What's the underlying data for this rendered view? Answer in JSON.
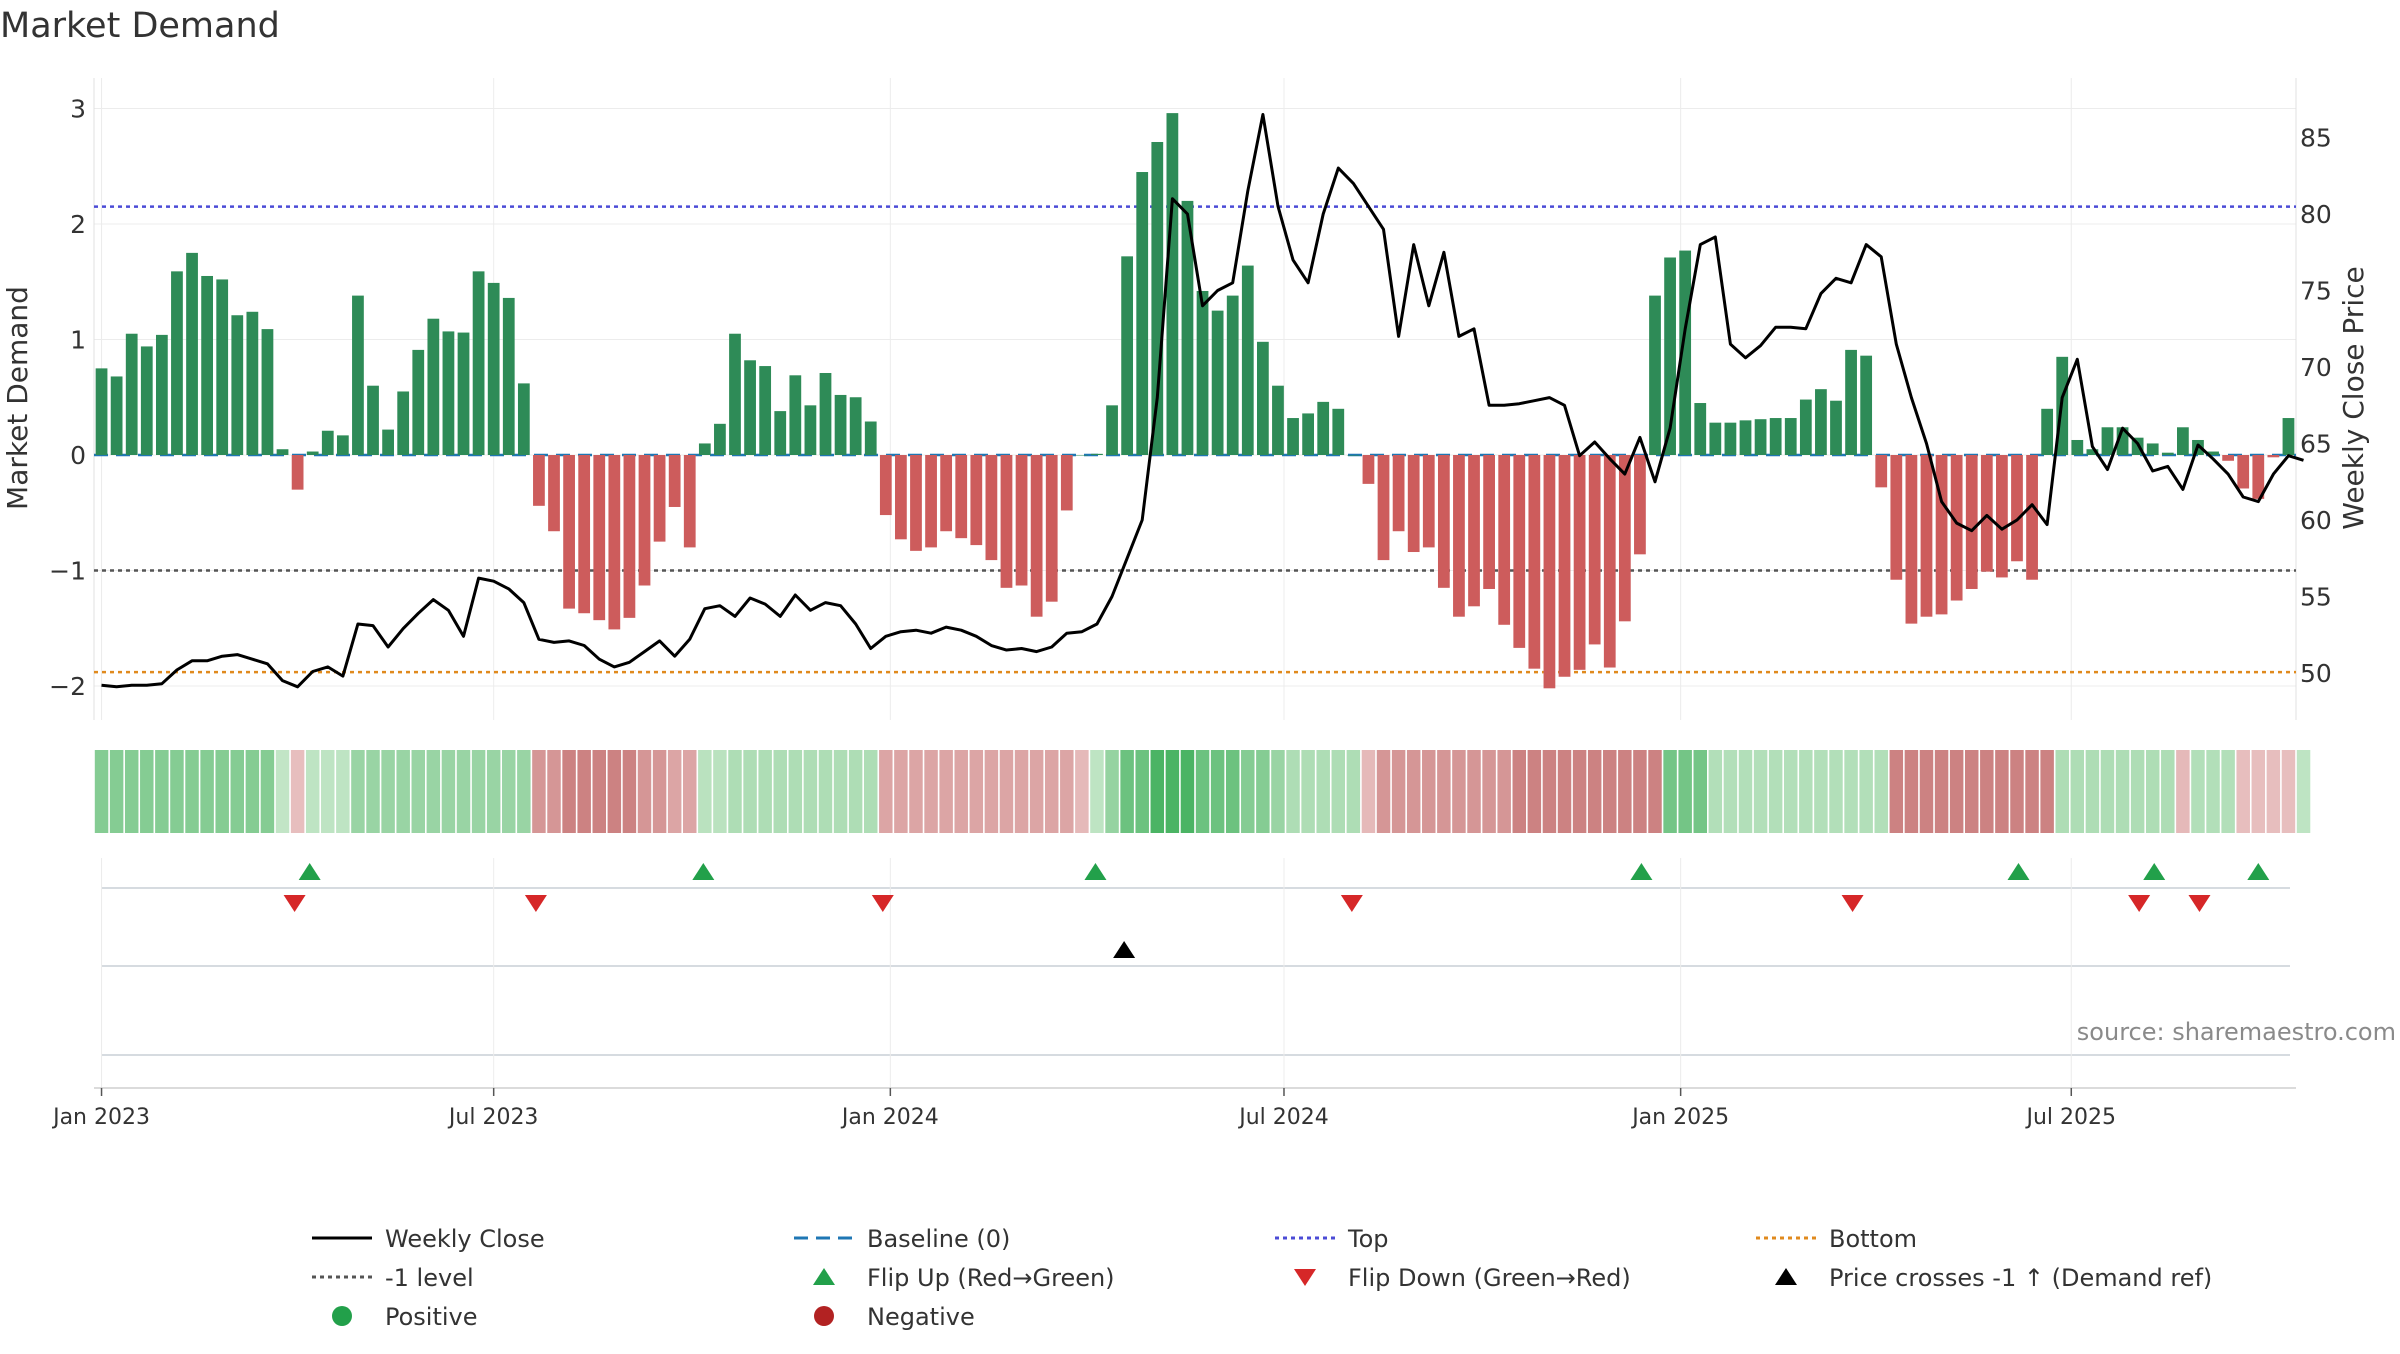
{
  "chart_data": {
    "type": "bar",
    "title": "Market Demand",
    "ylabel": "Market Demand",
    "y2label": "Weekly Close Price",
    "ylim": [
      -2.35,
      3.2
    ],
    "y2lim": [
      47.5,
      88
    ],
    "yticks": [
      "3",
      "2",
      "1",
      "0",
      "−1",
      "−2"
    ],
    "ytick_values": [
      3,
      2,
      1,
      0,
      -1,
      -2
    ],
    "y2ticks": [
      "85",
      "80",
      "75",
      "70",
      "65",
      "60",
      "55",
      "50"
    ],
    "y2tick_values": [
      85,
      80,
      75,
      70,
      65,
      60,
      55,
      50
    ],
    "x_ticks": [
      {
        "label": "Jan 2023",
        "week": 0
      },
      {
        "label": "Jul 2023",
        "week": 26
      },
      {
        "label": "Jan 2024",
        "week": 52.3
      },
      {
        "label": "Jul 2024",
        "week": 78.4
      },
      {
        "label": "Jan 2025",
        "week": 104.7
      },
      {
        "label": "Jul 2025",
        "week": 130.6
      }
    ],
    "source": "source: sharemaestro.com",
    "top_level": 2.15,
    "minus_one_level": -1,
    "bottom_level": -1.88,
    "baseline": 0,
    "demand": [
      0.75,
      0.68,
      1.05,
      0.94,
      1.04,
      1.59,
      1.75,
      1.55,
      1.52,
      1.21,
      1.24,
      1.09,
      0.05,
      -0.3,
      0.03,
      0.21,
      0.17,
      1.38,
      0.6,
      0.22,
      0.55,
      0.91,
      1.18,
      1.07,
      1.06,
      1.59,
      1.49,
      1.36,
      0.62,
      -0.44,
      -0.66,
      -1.33,
      -1.37,
      -1.43,
      -1.51,
      -1.41,
      -1.13,
      -0.75,
      -0.45,
      -0.8,
      0.1,
      0.27,
      1.05,
      0.82,
      0.77,
      0.38,
      0.69,
      0.43,
      0.71,
      0.52,
      0.5,
      0.29,
      -0.52,
      -0.73,
      -0.83,
      -0.8,
      -0.66,
      -0.72,
      -0.78,
      -0.91,
      -1.15,
      -1.13,
      -1.4,
      -1.27,
      -0.48,
      0.0,
      0.01,
      0.43,
      1.72,
      2.45,
      2.71,
      2.96,
      2.2,
      1.42,
      1.25,
      1.38,
      1.64,
      0.98,
      0.6,
      0.32,
      0.36,
      0.46,
      0.4,
      0,
      -0.25,
      -0.91,
      -0.66,
      -0.84,
      -0.8,
      -1.15,
      -1.4,
      -1.31,
      -1.16,
      -1.47,
      -1.67,
      -1.85,
      -2.02,
      -1.92,
      -1.86,
      -1.64,
      -1.84,
      -1.44,
      -0.86,
      1.38,
      1.71,
      1.77,
      0.45,
      0.28,
      0.28,
      0.3,
      0.31,
      0.32,
      0.32,
      0.48,
      0.57,
      0.47,
      0.91,
      0.86,
      -0.28,
      -1.08,
      -1.46,
      -1.4,
      -1.38,
      -1.26,
      -1.16,
      -1.01,
      -1.06,
      -0.92,
      -1.08,
      0.4,
      0.85,
      0.13,
      0.05,
      0.24,
      0.24,
      0.15,
      0.1,
      0.02,
      0.24,
      0.13,
      0.03,
      -0.05,
      -0.29,
      -0.38,
      -0.02,
      0.32
    ],
    "weekly_close": [
      49.2,
      49.1,
      49.2,
      49.2,
      49.3,
      50.2,
      50.8,
      50.8,
      51.1,
      51.2,
      50.9,
      50.6,
      49.5,
      49.1,
      50.1,
      50.4,
      49.8,
      53.2,
      53.1,
      51.7,
      52.9,
      53.9,
      54.8,
      54.1,
      52.4,
      56.2,
      56.0,
      55.5,
      54.6,
      52.2,
      52.0,
      52.1,
      51.8,
      50.9,
      50.4,
      50.7,
      51.4,
      52.1,
      51.1,
      52.2,
      54.2,
      54.4,
      53.7,
      54.9,
      54.5,
      53.7,
      55.1,
      54.1,
      54.6,
      54.4,
      53.2,
      51.6,
      52.4,
      52.7,
      52.8,
      52.6,
      53.0,
      52.8,
      52.4,
      51.8,
      51.5,
      51.6,
      51.4,
      51.7,
      52.6,
      52.7,
      53.2,
      55.0,
      57.5,
      60.0,
      68.0,
      81.0,
      80.0,
      74.0,
      75.0,
      75.5,
      81.5,
      86.5,
      80.5,
      77.0,
      75.5,
      80.0,
      83.0,
      82.0,
      80.5,
      79.0,
      72.0,
      78.0,
      74.0,
      77.5,
      72.0,
      72.5,
      67.5,
      67.5,
      67.6,
      67.8,
      68.0,
      67.5,
      64.2,
      65.1,
      64.0,
      63.0,
      65.4,
      62.5,
      66.0,
      72.5,
      78.0,
      78.5,
      71.5,
      70.6,
      71.4,
      72.6,
      72.6,
      72.5,
      74.8,
      75.8,
      75.5,
      78.0,
      77.2,
      71.5,
      68.0,
      65.0,
      61.2,
      59.8,
      59.3,
      60.3,
      59.4,
      60.0,
      61.0,
      59.7,
      68.0,
      70.5,
      64.8,
      63.3,
      66.0,
      65.0,
      63.2,
      63.5,
      62.0,
      64.9,
      64.0,
      63.0,
      61.5,
      61.2,
      63.0,
      64.2,
      63.9
    ],
    "heat_strip": [
      2,
      2,
      2,
      2,
      2,
      2,
      2,
      2,
      2,
      2,
      2,
      2,
      0.5,
      -0.5,
      0.6,
      0.6,
      0.6,
      1.5,
      1.5,
      1.5,
      1.5,
      1.5,
      1.5,
      1.5,
      1.5,
      1.5,
      1.5,
      1.5,
      1.5,
      -1.3,
      -1.3,
      -1.7,
      -1.7,
      -1.7,
      -1.7,
      -1.7,
      -1.3,
      -1.3,
      -1.0,
      -1.0,
      0.7,
      0.7,
      1.0,
      1.0,
      1.0,
      1.0,
      1.0,
      1.0,
      1.0,
      1.0,
      1.0,
      1.0,
      -1.0,
      -1.0,
      -1.0,
      -1.0,
      -1.0,
      -1.0,
      -1.0,
      -1.0,
      -1.0,
      -1.0,
      -1.0,
      -1.0,
      -1.0,
      -0.6,
      0.6,
      1.6,
      2.6,
      2.6,
      3.4,
      3.4,
      3.4,
      2.6,
      2.6,
      2.6,
      2.0,
      2.0,
      1.5,
      1.0,
      1.0,
      1.0,
      1.0,
      1.0,
      -0.6,
      -1.3,
      -1.3,
      -1.3,
      -1.3,
      -1.3,
      -1.3,
      -1.3,
      -1.3,
      -1.3,
      -1.7,
      -1.7,
      -1.7,
      -1.7,
      -1.7,
      -1.7,
      -1.7,
      -1.7,
      -1.7,
      -1.7,
      2.4,
      2.4,
      2.4,
      0.9,
      0.9,
      0.9,
      0.9,
      0.9,
      0.9,
      0.9,
      0.9,
      0.9,
      0.9,
      0.9,
      0.9,
      -1.7,
      -1.7,
      -1.7,
      -1.7,
      -1.7,
      -1.7,
      -1.7,
      -1.7,
      -1.7,
      -1.7,
      -1.7,
      1.0,
      1.0,
      1.0,
      1.0,
      1.0,
      1.0,
      1.0,
      1.0,
      -0.6,
      0.9,
      0.9,
      0.9,
      -0.5,
      -0.5,
      -0.5,
      -0.5,
      0.6
    ],
    "flip_up_weeks": [
      13.8,
      39.9,
      65.9,
      102.1,
      127.1,
      136.1,
      143
    ],
    "flip_down_weeks": [
      12.8,
      28.8,
      51.8,
      82.9,
      116.1,
      135.1,
      139.1
    ],
    "price_cross_weeks": [
      67.8
    ],
    "legend": [
      {
        "label": "Weekly Close",
        "kind": "line",
        "color": "#000000"
      },
      {
        "label": "Baseline (0)",
        "kind": "dash",
        "color": "#1f77b4"
      },
      {
        "label": "Top",
        "kind": "dot",
        "color": "#4b4bd6"
      },
      {
        "label": "Bottom",
        "kind": "dot",
        "color": "#e08a1e"
      },
      {
        "label": "-1 level",
        "kind": "dot",
        "color": "#555555"
      },
      {
        "label": "Flip Up (Red→Green)",
        "kind": "tri-up",
        "color": "#22a04a"
      },
      {
        "label": "Flip Down (Green→Red)",
        "kind": "tri-down",
        "color": "#d62728"
      },
      {
        "label": "Price crosses -1 ↑ (Demand ref)",
        "kind": "tri-up",
        "color": "#000000"
      },
      {
        "label": "Positive",
        "kind": "circle",
        "color": "#22a04a"
      },
      {
        "label": "Negative",
        "kind": "circle",
        "color": "#b22222"
      }
    ],
    "colors": {
      "positive_bar": "#2e8b57",
      "negative_bar": "#cd5c5c",
      "top_line": "#4b4bd6",
      "bottom_line": "#e08a1e",
      "minus_one_line": "#555555",
      "baseline": "#1f77b4"
    }
  }
}
